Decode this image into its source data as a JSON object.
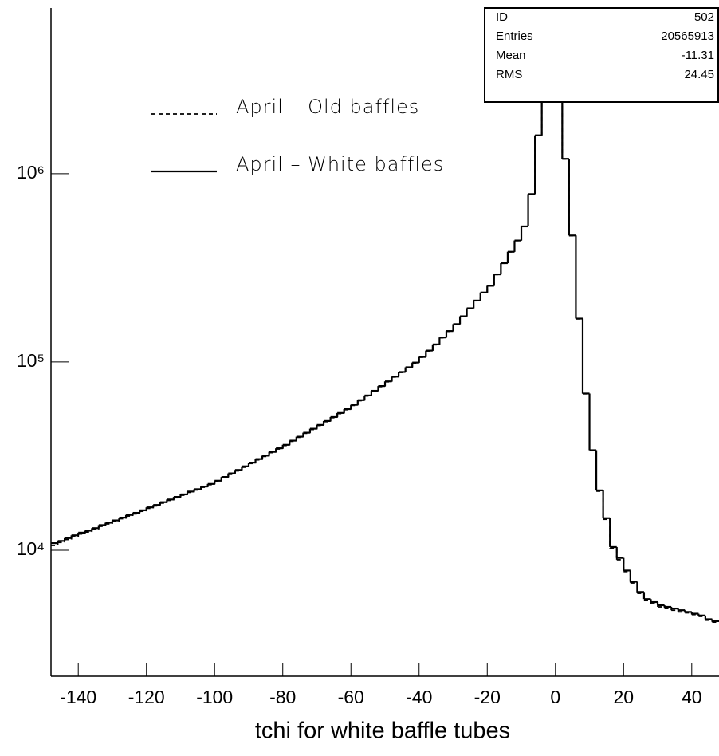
{
  "chart_data": {
    "type": "histogram",
    "xlabel": "tchi for white baffle tubes",
    "bins": [
      -148,
      -146,
      -144,
      -142,
      -140,
      -138,
      -136,
      -134,
      -132,
      -130,
      -128,
      -126,
      -124,
      -122,
      -120,
      -118,
      -116,
      -114,
      -112,
      -110,
      -108,
      -106,
      -104,
      -102,
      -100,
      -98,
      -96,
      -94,
      -92,
      -90,
      -88,
      -86,
      -84,
      -82,
      -80,
      -78,
      -76,
      -74,
      -72,
      -70,
      -68,
      -66,
      -64,
      -62,
      -60,
      -58,
      -56,
      -54,
      -52,
      -50,
      -48,
      -46,
      -44,
      -42,
      -40,
      -38,
      -36,
      -34,
      -32,
      -30,
      -28,
      -26,
      -24,
      -22,
      -20,
      -18,
      -16,
      -14,
      -12,
      -10,
      -8,
      -6,
      -4,
      -2,
      0,
      2,
      4,
      6,
      8,
      10,
      12,
      14,
      16,
      18,
      20,
      22,
      24,
      26,
      28,
      30,
      32,
      34,
      36,
      38,
      40,
      42,
      44,
      46,
      48
    ],
    "series": [
      {
        "name": "April – Old baffles",
        "color": "#000000",
        "line_style": "dashed",
        "values": [
          10600,
          11000,
          11400,
          11800,
          12200,
          12500,
          12900,
          13400,
          13800,
          14200,
          14700,
          15200,
          15600,
          16100,
          16700,
          17200,
          17800,
          18400,
          19000,
          19600,
          20300,
          20900,
          21600,
          22300,
          23200,
          24300,
          25300,
          26400,
          27600,
          28900,
          30200,
          31500,
          33000,
          34500,
          36000,
          37900,
          39800,
          41800,
          43800,
          46000,
          48200,
          50600,
          53200,
          55800,
          58800,
          62300,
          66000,
          70000,
          74000,
          78500,
          83200,
          88000,
          93300,
          98800,
          106000,
          114500,
          123500,
          134500,
          145500,
          158500,
          174500,
          192500,
          211500,
          233500,
          253500,
          291500,
          334500,
          384500,
          441500,
          524500,
          779000,
          1598000,
          2598000,
          3798000,
          2498000,
          1198000,
          469000,
          169500,
          67800,
          33800,
          20600,
          14600,
          10200,
          8900,
          7700,
          6700,
          5900,
          5400,
          5200,
          5000,
          4900,
          4800,
          4700,
          4650,
          4550,
          4450,
          4250,
          4150
        ]
      },
      {
        "name": "April – White baffles",
        "color": "#000000",
        "line_style": "solid",
        "values": [
          10900,
          11200,
          11600,
          12000,
          12400,
          12700,
          13100,
          13600,
          14000,
          14400,
          14900,
          15400,
          15800,
          16300,
          16900,
          17400,
          18000,
          18600,
          19200,
          19800,
          20500,
          21100,
          21800,
          22500,
          23400,
          24500,
          25600,
          26700,
          27900,
          29200,
          30500,
          31800,
          33300,
          34800,
          36300,
          38200,
          40100,
          42100,
          44200,
          46300,
          48600,
          51000,
          53600,
          56200,
          59200,
          62700,
          66400,
          70300,
          74500,
          78900,
          83600,
          88500,
          93800,
          99300,
          106400,
          115000,
          124000,
          135000,
          146000,
          159000,
          175000,
          193000,
          212000,
          234000,
          254000,
          292000,
          335000,
          385000,
          442000,
          525000,
          780000,
          1600000,
          2600000,
          3800000,
          2500000,
          1200000,
          470000,
          170000,
          68000,
          34000,
          20800,
          14800,
          10400,
          9100,
          7800,
          6800,
          6000,
          5500,
          5300,
          5100,
          5000,
          4900,
          4800,
          4700,
          4600,
          4500,
          4300,
          4200
        ]
      }
    ],
    "xlim": [
      -148,
      48
    ],
    "xticks": [
      -140,
      -120,
      -100,
      -80,
      -60,
      -40,
      -20,
      0,
      20,
      40
    ],
    "ylim": [
      2140,
      7600000
    ],
    "log_y": true,
    "yticks": [
      {
        "value": 10000,
        "label": "10⁴"
      },
      {
        "value": 100000,
        "label": "10⁵"
      },
      {
        "value": 1000000,
        "label": "10⁶"
      }
    ],
    "legend": "upper left",
    "stats": [
      {
        "label": "ID",
        "value": 502
      },
      {
        "label": "Entries",
        "value": 20565913
      },
      {
        "label": "Mean",
        "value": -11.31
      },
      {
        "label": "RMS",
        "value": 24.45
      }
    ]
  }
}
